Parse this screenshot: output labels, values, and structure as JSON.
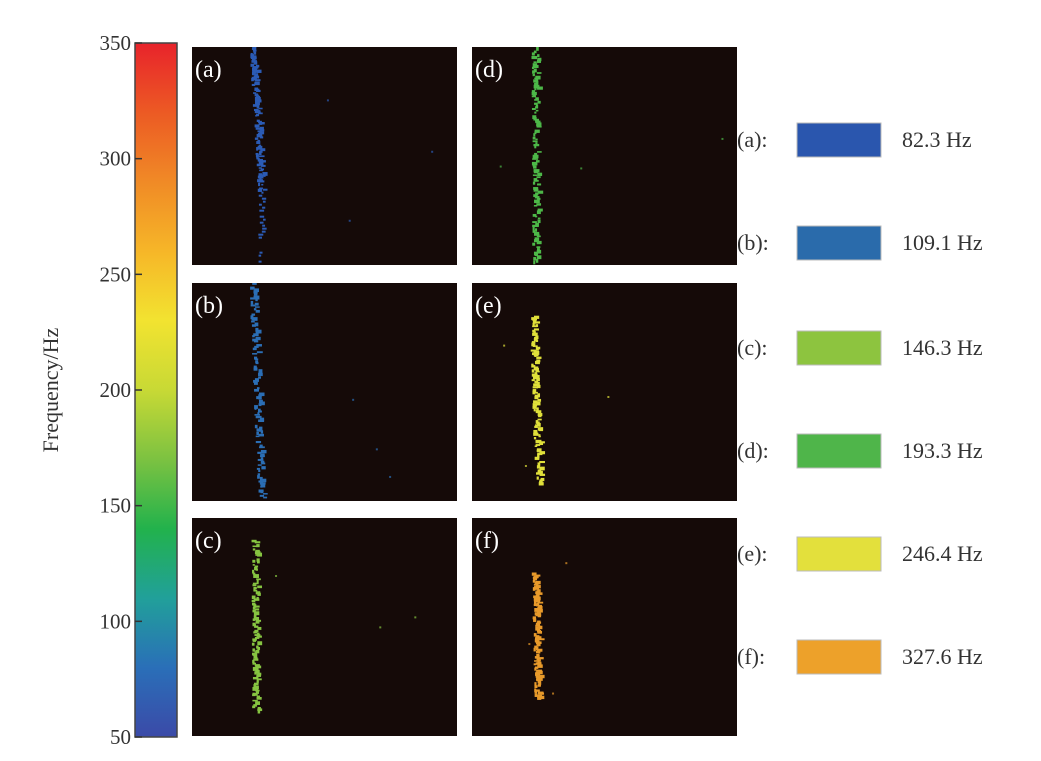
{
  "chart_data": {
    "type": "heatmap",
    "colorbar": {
      "label": "Frequency/Hz",
      "range": [
        50,
        350
      ],
      "ticks": [
        50,
        100,
        150,
        200,
        250,
        300,
        350
      ],
      "colormap": [
        "#3b4aa8",
        "#2a6fb8",
        "#21a09a",
        "#22b24c",
        "#7cc241",
        "#c8d935",
        "#f2e330",
        "#f6b628",
        "#f08a26",
        "#ec5a24",
        "#e8232b"
      ]
    },
    "panels": [
      {
        "label": "(a)",
        "frequency": 82.3,
        "color": "#2b5bb5",
        "trace": {
          "top": [
            0.215,
            0.0
          ],
          "bottom": [
            0.245,
            0.65
          ],
          "extra_bottom": [
            0.245,
            0.98
          ]
        }
      },
      {
        "label": "(b)",
        "frequency": 109.1,
        "color": "#2b6eb5",
        "trace": {
          "top": [
            0.215,
            0.0
          ],
          "bottom": [
            0.245,
            0.98
          ]
        }
      },
      {
        "label": "(c)",
        "frequency": 146.3,
        "color": "#86c441",
        "trace": {
          "top": [
            0.223,
            0.1
          ],
          "bottom": [
            0.225,
            0.88
          ]
        }
      },
      {
        "label": "(d)",
        "frequency": 193.3,
        "color": "#4db848",
        "trace": {
          "top": [
            0.223,
            0.0
          ],
          "bottom": [
            0.225,
            0.98
          ]
        }
      },
      {
        "label": "(e)",
        "frequency": 246.4,
        "color": "#e0e03a",
        "trace": {
          "top": [
            0.215,
            0.15
          ],
          "bottom": [
            0.235,
            0.92
          ]
        }
      },
      {
        "label": "(f)",
        "frequency": 327.6,
        "color": "#e89a2a",
        "trace": {
          "top": [
            0.223,
            0.25
          ],
          "bottom": [
            0.233,
            0.82
          ]
        }
      }
    ],
    "legend": [
      {
        "key": "(a):",
        "value": "82.3 Hz",
        "color": "#2a56ae"
      },
      {
        "key": "(b):",
        "value": "109.1 Hz",
        "color": "#2a6bab"
      },
      {
        "key": "(c):",
        "value": "146.3 Hz",
        "color": "#8dc43f"
      },
      {
        "key": "(d):",
        "value": "193.3 Hz",
        "color": "#4fb54a"
      },
      {
        "key": "(e):",
        "value": "246.4 Hz",
        "color": "#e3e03c"
      },
      {
        "key": "(f):",
        "value": "327.6 Hz",
        "color": "#eda12a"
      }
    ],
    "panel_background": "#150a08"
  }
}
